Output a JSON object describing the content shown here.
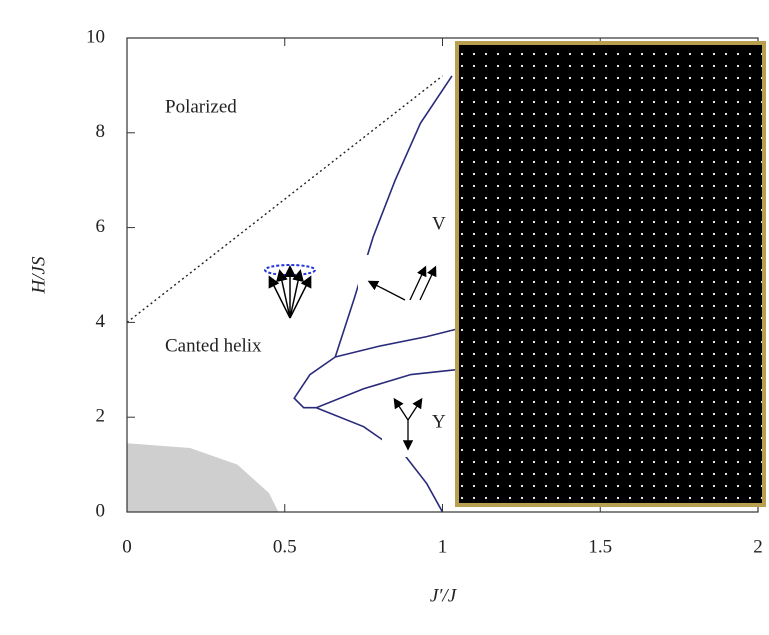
{
  "chart_data": {
    "type": "line",
    "x_label": "J′/J",
    "y_label": "H/JS",
    "xlim": [
      0,
      2
    ],
    "ylim": [
      0,
      10
    ],
    "xticks": [
      0,
      0.5,
      1,
      1.5,
      2
    ],
    "yticks": [
      0,
      2,
      4,
      6,
      8,
      10
    ],
    "annotations": [
      "Polarized",
      "Canted helix",
      "V",
      "Y"
    ],
    "shaded_region": {
      "color": "#cfcfcf",
      "x": [
        0,
        0.2,
        0.35,
        0.45,
        0.48
      ],
      "y": [
        1.45,
        1.35,
        1.0,
        0.4,
        0
      ]
    },
    "lines": [
      {
        "color": "#222222",
        "style": "dotted",
        "x": [
          0,
          1.0
        ],
        "y": [
          4.0,
          9.2
        ]
      },
      {
        "color": "#2a2a7a",
        "style": "solid",
        "x": [
          0.66,
          0.72,
          0.78,
          0.85,
          0.93,
          1.03
        ],
        "y": [
          3.27,
          4.5,
          5.8,
          7.0,
          8.2,
          9.2
        ]
      },
      {
        "color": "#2a2a7a",
        "style": "solid",
        "x": [
          0.66,
          0.8,
          0.95,
          1.04
        ],
        "y": [
          3.27,
          3.5,
          3.7,
          3.85
        ]
      },
      {
        "color": "#2a2a7a",
        "style": "solid",
        "x": [
          0.66,
          0.58,
          0.53,
          0.56,
          0.6,
          0.75,
          0.9,
          1.04
        ],
        "y": [
          3.27,
          2.9,
          2.4,
          2.2,
          2.2,
          2.6,
          2.9,
          3.0
        ]
      },
      {
        "color": "#2a2a7a",
        "style": "solid",
        "x": [
          0.6,
          0.75,
          0.88,
          0.95,
          1.0
        ],
        "y": [
          2.2,
          1.8,
          1.2,
          0.6,
          0
        ]
      }
    ]
  }
}
